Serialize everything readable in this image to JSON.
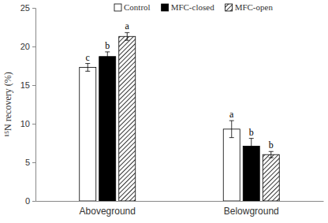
{
  "chart_data": {
    "type": "bar",
    "y_label": "¹⁵N recovery (%)",
    "categories": [
      "Aboveground",
      "Belowground"
    ],
    "series": [
      {
        "name": "Control",
        "color": "#ffffff",
        "values": [
          17.3,
          9.3
        ],
        "errors": [
          0.5,
          1.1
        ],
        "letters": [
          "c",
          "a"
        ]
      },
      {
        "name": "MFC-closed",
        "color": "#000000",
        "values": [
          18.7,
          7.1
        ],
        "errors": [
          0.6,
          1.0
        ],
        "letters": [
          "b",
          "b"
        ]
      },
      {
        "name": "MFC-open",
        "color": "#ffffff",
        "values": [
          21.3,
          6.0
        ],
        "errors": [
          0.5,
          0.4
        ],
        "letters": [
          "a",
          "b"
        ]
      }
    ],
    "ylim": [
      0,
      25
    ],
    "yticks": [
      0,
      5,
      10,
      15,
      20,
      25
    ],
    "grid": false,
    "legend": "top"
  }
}
